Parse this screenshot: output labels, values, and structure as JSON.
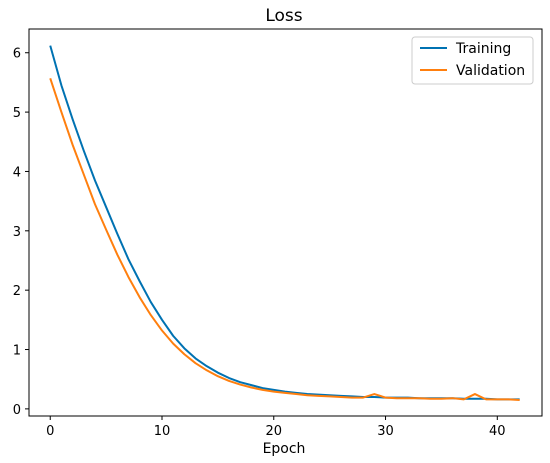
{
  "chart_data": {
    "type": "line",
    "title": "Loss",
    "xlabel": "Epoch",
    "ylabel": "",
    "xlim": [
      -1.9,
      44
    ],
    "ylim": [
      -0.12,
      6.4
    ],
    "xticks": [
      0,
      10,
      20,
      30,
      40
    ],
    "yticks": [
      0,
      1,
      2,
      3,
      4,
      5,
      6
    ],
    "grid": false,
    "legend": "top-right",
    "x": [
      0,
      1,
      2,
      3,
      4,
      5,
      6,
      7,
      8,
      9,
      10,
      11,
      12,
      13,
      14,
      15,
      16,
      17,
      18,
      19,
      20,
      21,
      22,
      23,
      24,
      25,
      26,
      27,
      28,
      29,
      30,
      31,
      32,
      33,
      34,
      35,
      36,
      37,
      38,
      39,
      40,
      41,
      42
    ],
    "series": [
      {
        "name": "Training",
        "color": "#0072b2",
        "values": [
          6.12,
          5.45,
          4.88,
          4.35,
          3.85,
          3.4,
          2.95,
          2.52,
          2.15,
          1.8,
          1.5,
          1.23,
          1.02,
          0.85,
          0.72,
          0.61,
          0.52,
          0.45,
          0.4,
          0.35,
          0.32,
          0.29,
          0.27,
          0.25,
          0.24,
          0.23,
          0.22,
          0.21,
          0.2,
          0.2,
          0.19,
          0.19,
          0.19,
          0.18,
          0.18,
          0.18,
          0.18,
          0.17,
          0.17,
          0.17,
          0.16,
          0.16,
          0.16
        ]
      },
      {
        "name": "Validation",
        "color": "#ff7f0e",
        "values": [
          5.57,
          5.0,
          4.45,
          3.95,
          3.45,
          3.02,
          2.6,
          2.22,
          1.88,
          1.58,
          1.32,
          1.1,
          0.92,
          0.77,
          0.65,
          0.55,
          0.47,
          0.41,
          0.36,
          0.32,
          0.29,
          0.27,
          0.25,
          0.23,
          0.22,
          0.21,
          0.2,
          0.19,
          0.19,
          0.25,
          0.19,
          0.18,
          0.18,
          0.18,
          0.17,
          0.17,
          0.18,
          0.16,
          0.25,
          0.16,
          0.16,
          0.16,
          0.15
        ]
      }
    ]
  }
}
